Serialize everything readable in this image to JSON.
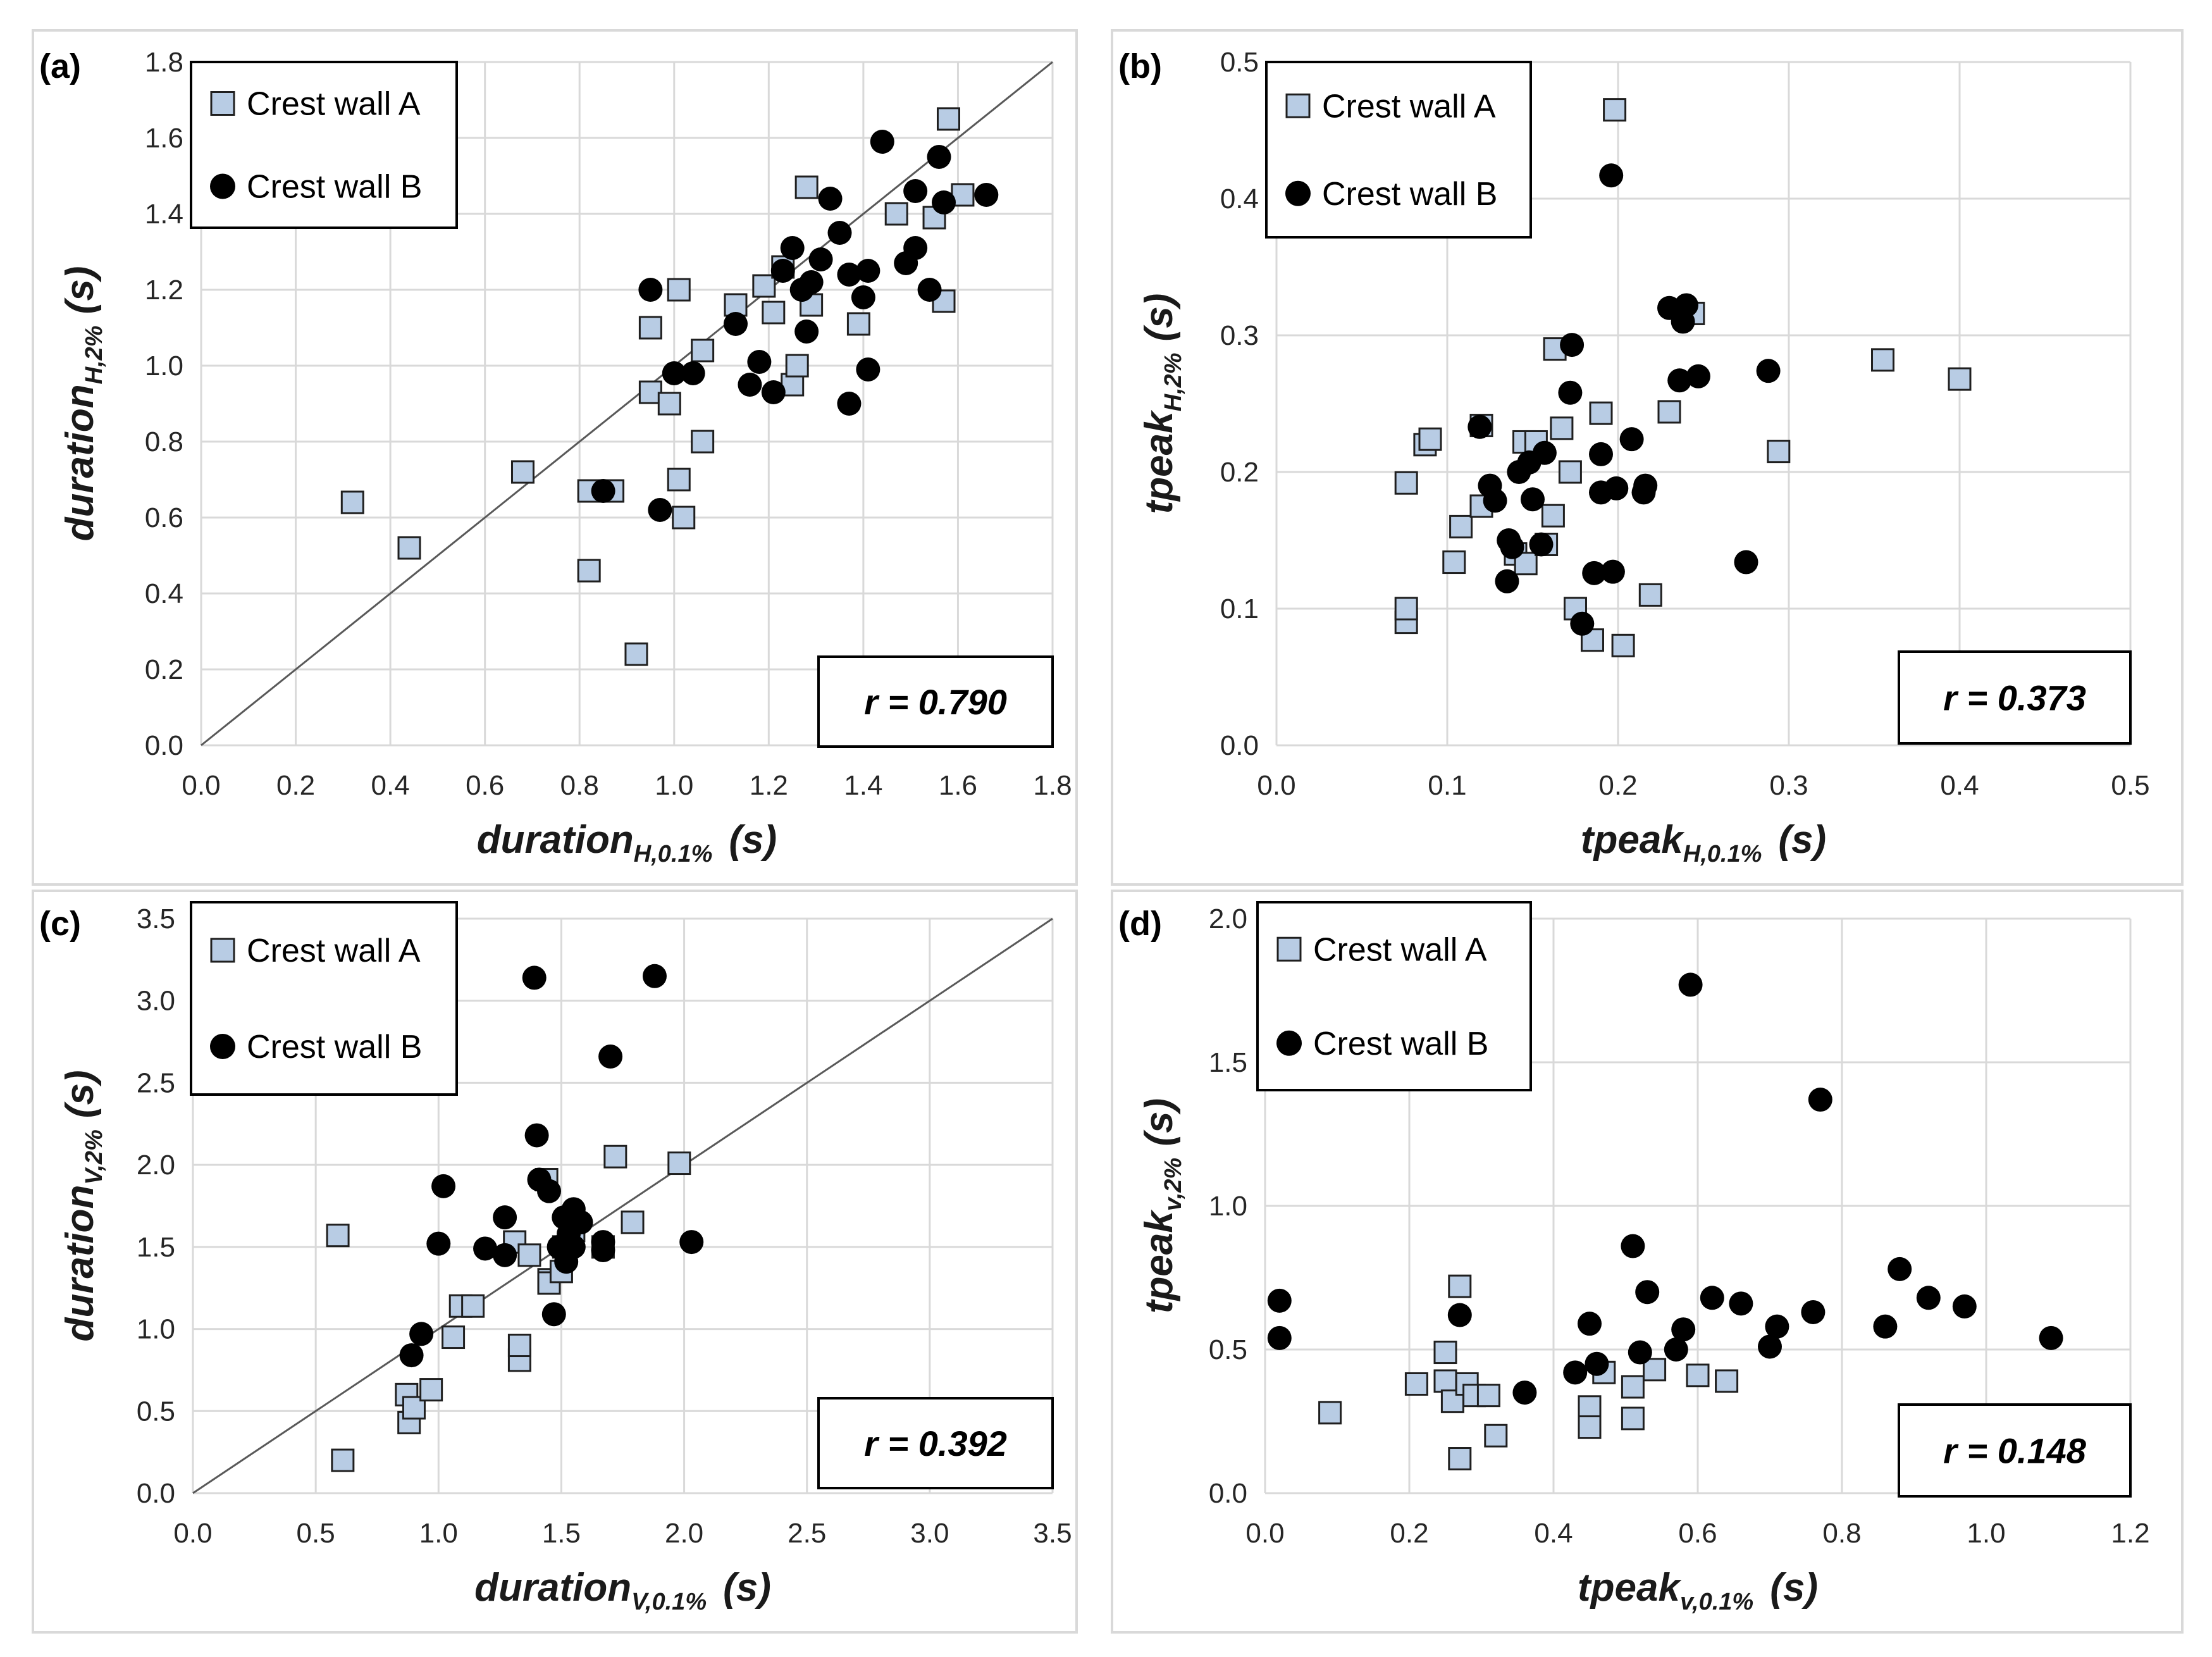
{
  "chart_data": [
    {
      "type": "scatter",
      "panel_label": "(a)",
      "xlabel": {
        "main": "duration",
        "sub": "H,0.1%",
        "unit": "(s)"
      },
      "ylabel": {
        "main": "duration",
        "sub": "H,2%",
        "unit": "(s)"
      },
      "xlim": [
        0,
        1.8
      ],
      "ylim": [
        0,
        1.8
      ],
      "xticks": [
        "0.0",
        "0.2",
        "0.4",
        "0.6",
        "0.8",
        "1.0",
        "1.2",
        "1.4",
        "1.6",
        "1.8"
      ],
      "yticks": [
        "0.0",
        "0.2",
        "0.4",
        "0.6",
        "0.8",
        "1.0",
        "1.2",
        "1.4",
        "1.6",
        "1.8"
      ],
      "grid": true,
      "identity_line": true,
      "legend_position": "top-left",
      "annotation": "r = 0.790",
      "series": [
        {
          "name": "Crest wall A",
          "marker": "square",
          "color": "#b8cce4",
          "points": [
            [
              0.32,
              0.64
            ],
            [
              0.44,
              0.52
            ],
            [
              0.68,
              0.72
            ],
            [
              0.82,
              0.46
            ],
            [
              0.82,
              0.67
            ],
            [
              0.87,
              0.67
            ],
            [
              0.92,
              0.24
            ],
            [
              0.95,
              1.1
            ],
            [
              0.95,
              0.93
            ],
            [
              0.99,
              0.9
            ],
            [
              1.01,
              1.2
            ],
            [
              1.01,
              0.7
            ],
            [
              1.02,
              0.6
            ],
            [
              1.06,
              1.04
            ],
            [
              1.06,
              0.8
            ],
            [
              1.13,
              1.16
            ],
            [
              1.19,
              1.21
            ],
            [
              1.21,
              1.14
            ],
            [
              1.23,
              1.26
            ],
            [
              1.25,
              0.95
            ],
            [
              1.26,
              1.0
            ],
            [
              1.28,
              1.47
            ],
            [
              1.29,
              1.16
            ],
            [
              1.39,
              1.11
            ],
            [
              1.47,
              1.4
            ],
            [
              1.55,
              1.39
            ],
            [
              1.57,
              1.17
            ],
            [
              1.58,
              1.65
            ],
            [
              1.61,
              1.45
            ]
          ]
        },
        {
          "name": "Crest wall B",
          "marker": "circle",
          "color": "#000000",
          "points": [
            [
              0.85,
              0.67
            ],
            [
              0.95,
              1.2
            ],
            [
              0.97,
              0.62
            ],
            [
              1.0,
              0.98
            ],
            [
              1.04,
              0.98
            ],
            [
              1.13,
              1.11
            ],
            [
              1.16,
              0.95
            ],
            [
              1.18,
              1.01
            ],
            [
              1.21,
              0.93
            ],
            [
              1.23,
              1.25
            ],
            [
              1.25,
              1.31
            ],
            [
              1.27,
              1.2
            ],
            [
              1.28,
              1.09
            ],
            [
              1.29,
              1.22
            ],
            [
              1.31,
              1.28
            ],
            [
              1.33,
              1.44
            ],
            [
              1.35,
              1.35
            ],
            [
              1.37,
              0.9
            ],
            [
              1.37,
              1.24
            ],
            [
              1.4,
              1.18
            ],
            [
              1.41,
              1.25
            ],
            [
              1.41,
              0.99
            ],
            [
              1.44,
              1.59
            ],
            [
              1.49,
              1.27
            ],
            [
              1.51,
              1.46
            ],
            [
              1.51,
              1.31
            ],
            [
              1.54,
              1.2
            ],
            [
              1.56,
              1.55
            ],
            [
              1.57,
              1.43
            ],
            [
              1.66,
              1.45
            ]
          ]
        }
      ]
    },
    {
      "type": "scatter",
      "panel_label": "(b)",
      "xlabel": {
        "main": "tpeak",
        "sub": "H,0.1%",
        "unit": "(s)"
      },
      "ylabel": {
        "main": "tpeak",
        "sub": "H,2%",
        "unit": "(s)"
      },
      "xlim": [
        0,
        0.5
      ],
      "ylim": [
        0,
        0.5
      ],
      "xticks": [
        "0.0",
        "0.1",
        "0.2",
        "0.3",
        "0.4",
        "0.5"
      ],
      "yticks": [
        "0.0",
        "0.1",
        "0.2",
        "0.3",
        "0.4",
        "0.5"
      ],
      "grid": true,
      "identity_line": false,
      "legend_position": "top-left",
      "annotation": "r = 0.373",
      "series": [
        {
          "name": "Crest wall A",
          "marker": "square",
          "color": "#b8cce4",
          "points": [
            [
              0.076,
              0.09
            ],
            [
              0.076,
              0.1
            ],
            [
              0.076,
              0.192
            ],
            [
              0.087,
              0.22
            ],
            [
              0.09,
              0.224
            ],
            [
              0.104,
              0.134
            ],
            [
              0.108,
              0.16
            ],
            [
              0.12,
              0.234
            ],
            [
              0.12,
              0.175
            ],
            [
              0.14,
              0.14
            ],
            [
              0.145,
              0.222
            ],
            [
              0.146,
              0.133
            ],
            [
              0.152,
              0.222
            ],
            [
              0.158,
              0.147
            ],
            [
              0.162,
              0.168
            ],
            [
              0.163,
              0.29
            ],
            [
              0.167,
              0.232
            ],
            [
              0.172,
              0.2
            ],
            [
              0.175,
              0.1
            ],
            [
              0.185,
              0.077
            ],
            [
              0.19,
              0.243
            ],
            [
              0.198,
              0.465
            ],
            [
              0.203,
              0.073
            ],
            [
              0.219,
              0.11
            ],
            [
              0.23,
              0.244
            ],
            [
              0.244,
              0.316
            ],
            [
              0.294,
              0.215
            ],
            [
              0.355,
              0.282
            ],
            [
              0.4,
              0.268
            ]
          ]
        },
        {
          "name": "Crest wall B",
          "marker": "circle",
          "color": "#000000",
          "points": [
            [
              0.119,
              0.233
            ],
            [
              0.125,
              0.19
            ],
            [
              0.128,
              0.179
            ],
            [
              0.135,
              0.12
            ],
            [
              0.136,
              0.15
            ],
            [
              0.138,
              0.145
            ],
            [
              0.142,
              0.2
            ],
            [
              0.148,
              0.207
            ],
            [
              0.15,
              0.18
            ],
            [
              0.155,
              0.147
            ],
            [
              0.157,
              0.214
            ],
            [
              0.172,
              0.258
            ],
            [
              0.173,
              0.293
            ],
            [
              0.179,
              0.089
            ],
            [
              0.186,
              0.126
            ],
            [
              0.19,
              0.213
            ],
            [
              0.19,
              0.185
            ],
            [
              0.196,
              0.417
            ],
            [
              0.197,
              0.127
            ],
            [
              0.199,
              0.188
            ],
            [
              0.208,
              0.224
            ],
            [
              0.215,
              0.185
            ],
            [
              0.216,
              0.19
            ],
            [
              0.23,
              0.32
            ],
            [
              0.236,
              0.267
            ],
            [
              0.238,
              0.31
            ],
            [
              0.24,
              0.322
            ],
            [
              0.247,
              0.27
            ],
            [
              0.275,
              0.134
            ],
            [
              0.288,
              0.274
            ]
          ]
        }
      ]
    },
    {
      "type": "scatter",
      "panel_label": "(c)",
      "xlabel": {
        "main": "duration",
        "sub": "V,0.1%",
        "unit": "(s)"
      },
      "ylabel": {
        "main": "duration",
        "sub": "V,2%",
        "unit": "(s)"
      },
      "xlim": [
        0,
        3.5
      ],
      "ylim": [
        0,
        3.5
      ],
      "xticks": [
        "0.0",
        "0.5",
        "1.0",
        "1.5",
        "2.0",
        "2.5",
        "3.0",
        "3.5"
      ],
      "yticks": [
        "0.0",
        "0.5",
        "1.0",
        "1.5",
        "2.0",
        "2.5",
        "3.0",
        "3.5"
      ],
      "grid": true,
      "identity_line": true,
      "legend_position": "top-left",
      "annotation": "r = 0.392",
      "series": [
        {
          "name": "Crest wall A",
          "marker": "square",
          "color": "#b8cce4",
          "points": [
            [
              0.59,
              1.57
            ],
            [
              0.61,
              0.2
            ],
            [
              0.87,
              0.6
            ],
            [
              0.88,
              0.43
            ],
            [
              0.9,
              0.52
            ],
            [
              0.97,
              0.63
            ],
            [
              1.06,
              0.95
            ],
            [
              1.09,
              1.14
            ],
            [
              1.14,
              1.14
            ],
            [
              1.31,
              1.53
            ],
            [
              1.33,
              0.81
            ],
            [
              1.33,
              0.9
            ],
            [
              1.37,
              1.45
            ],
            [
              1.44,
              1.91
            ],
            [
              1.45,
              1.3
            ],
            [
              1.45,
              1.28
            ],
            [
              1.5,
              1.35
            ],
            [
              1.51,
              1.5
            ],
            [
              1.55,
              1.6
            ],
            [
              1.67,
              1.5
            ],
            [
              1.72,
              2.05
            ],
            [
              1.79,
              1.65
            ],
            [
              1.98,
              2.01
            ]
          ]
        },
        {
          "name": "Crest wall B",
          "marker": "circle",
          "color": "#000000",
          "points": [
            [
              0.89,
              0.84
            ],
            [
              0.93,
              0.97
            ],
            [
              1.0,
              1.52
            ],
            [
              1.02,
              1.87
            ],
            [
              1.19,
              1.49
            ],
            [
              1.27,
              1.45
            ],
            [
              1.27,
              1.68
            ],
            [
              1.39,
              3.14
            ],
            [
              1.4,
              2.18
            ],
            [
              1.41,
              1.91
            ],
            [
              1.45,
              1.84
            ],
            [
              1.47,
              1.09
            ],
            [
              1.49,
              1.5
            ],
            [
              1.51,
              1.68
            ],
            [
              1.52,
              1.41
            ],
            [
              1.53,
              1.58
            ],
            [
              1.55,
              1.73
            ],
            [
              1.55,
              1.5
            ],
            [
              1.58,
              1.65
            ],
            [
              1.67,
              1.53
            ],
            [
              1.67,
              1.48
            ],
            [
              1.7,
              2.66
            ],
            [
              1.88,
              3.15
            ],
            [
              2.03,
              1.53
            ]
          ]
        }
      ]
    },
    {
      "type": "scatter",
      "panel_label": "(d)",
      "xlabel": {
        "main": "tpeak",
        "sub": "v,0.1%",
        "unit": "(s)"
      },
      "ylabel": {
        "main": "tpeak",
        "sub": "v,2%",
        "unit": "(s)"
      },
      "xlim": [
        0,
        1.2
      ],
      "ylim": [
        0,
        2.0
      ],
      "xticks": [
        "0.0",
        "0.2",
        "0.4",
        "0.6",
        "0.8",
        "1.0",
        "1.2"
      ],
      "yticks": [
        "0.0",
        "0.5",
        "1.0",
        "1.5",
        "2.0"
      ],
      "grid": true,
      "identity_line": false,
      "legend_position": "top-left",
      "annotation": "r = 0.148",
      "series": [
        {
          "name": "Crest wall A",
          "marker": "square",
          "color": "#b8cce4",
          "points": [
            [
              0.09,
              0.28
            ],
            [
              0.21,
              0.38
            ],
            [
              0.25,
              0.49
            ],
            [
              0.25,
              0.39
            ],
            [
              0.26,
              0.32
            ],
            [
              0.27,
              0.72
            ],
            [
              0.27,
              0.12
            ],
            [
              0.28,
              0.38
            ],
            [
              0.29,
              0.34
            ],
            [
              0.31,
              0.34
            ],
            [
              0.32,
              0.2
            ],
            [
              0.45,
              0.3
            ],
            [
              0.45,
              0.23
            ],
            [
              0.47,
              0.42
            ],
            [
              0.51,
              0.37
            ],
            [
              0.51,
              0.26
            ],
            [
              0.54,
              0.43
            ],
            [
              0.6,
              0.41
            ],
            [
              0.64,
              0.39
            ]
          ]
        },
        {
          "name": "Crest wall B",
          "marker": "circle",
          "color": "#000000",
          "points": [
            [
              0.02,
              0.67
            ],
            [
              0.02,
              0.54
            ],
            [
              0.27,
              0.62
            ],
            [
              0.36,
              0.35
            ],
            [
              0.43,
              0.42
            ],
            [
              0.45,
              0.59
            ],
            [
              0.46,
              0.45
            ],
            [
              0.51,
              0.86
            ],
            [
              0.52,
              0.49
            ],
            [
              0.53,
              0.7
            ],
            [
              0.57,
              0.5
            ],
            [
              0.58,
              0.57
            ],
            [
              0.59,
              1.77
            ],
            [
              0.62,
              0.68
            ],
            [
              0.66,
              0.66
            ],
            [
              0.7,
              0.51
            ],
            [
              0.71,
              0.58
            ],
            [
              0.76,
              0.63
            ],
            [
              0.77,
              1.37
            ],
            [
              0.86,
              0.58
            ],
            [
              0.88,
              0.78
            ],
            [
              0.92,
              0.68
            ],
            [
              0.97,
              0.65
            ],
            [
              1.09,
              0.54
            ]
          ]
        }
      ]
    }
  ]
}
